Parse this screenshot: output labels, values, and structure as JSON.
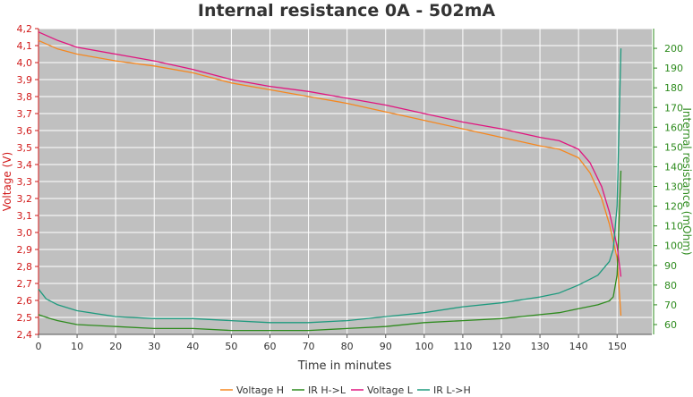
{
  "chart_data": {
    "type": "line",
    "title": "Internal resistance  0A - 502mA",
    "xlabel": "Time in minutes",
    "ylabel_left": "Voltage (V)",
    "ylabel_right": "Internal resistance (mOhm)",
    "xlim": [
      0,
      159
    ],
    "ylim_left": [
      2.4,
      4.2
    ],
    "ylim_right": [
      55,
      210
    ],
    "x_ticks": [
      "0",
      "10",
      "20",
      "30",
      "40",
      "50",
      "60",
      "70",
      "80",
      "90",
      "100",
      "110",
      "120",
      "130",
      "140",
      "150"
    ],
    "y_left_ticks": [
      "2,4",
      "2,5",
      "2,6",
      "2,7",
      "2,8",
      "2,9",
      "3,0",
      "3,1",
      "3,2",
      "3,3",
      "3,4",
      "3,5",
      "3,6",
      "3,7",
      "3,8",
      "3,9",
      "4,0",
      "4,1",
      "4,2"
    ],
    "y_right_ticks": [
      "60",
      "70",
      "80",
      "90",
      "100",
      "110",
      "120",
      "130",
      "140",
      "150",
      "160",
      "170",
      "180",
      "190",
      "200"
    ],
    "grid": true,
    "legend_position": "bottom",
    "colors": {
      "voltage_h": "#f5871f",
      "ir_hl": "#2e8b1e",
      "voltage_l": "#e0157f",
      "ir_lh": "#1e9a7e",
      "left_axis": "#d11a1a",
      "right_axis": "#2e8b1e",
      "plot_bg": "#c0c0c0",
      "grid": "#ffffff"
    },
    "series": [
      {
        "name": "Voltage H",
        "axis": "left",
        "color": "#f5871f",
        "x": [
          0,
          5,
          10,
          20,
          30,
          40,
          50,
          60,
          70,
          80,
          90,
          100,
          110,
          120,
          130,
          135,
          140,
          143,
          146,
          148,
          150,
          151
        ],
        "y": [
          4.13,
          4.08,
          4.05,
          4.01,
          3.98,
          3.94,
          3.88,
          3.84,
          3.8,
          3.76,
          3.71,
          3.66,
          3.61,
          3.56,
          3.51,
          3.49,
          3.44,
          3.35,
          3.2,
          3.05,
          2.85,
          2.51
        ]
      },
      {
        "name": "IR H->L",
        "axis": "right",
        "color": "#2e8b1e",
        "x": [
          0,
          3,
          5,
          10,
          20,
          30,
          40,
          50,
          60,
          70,
          80,
          90,
          100,
          110,
          120,
          130,
          135,
          140,
          145,
          148,
          149,
          150,
          151
        ],
        "y": [
          65,
          63,
          62,
          60,
          59,
          58,
          58,
          57,
          57,
          57,
          58,
          59,
          61,
          62,
          63,
          65,
          66,
          68,
          70,
          72,
          74,
          85,
          138
        ]
      },
      {
        "name": "Voltage L",
        "axis": "left",
        "color": "#e0157f",
        "x": [
          0,
          5,
          10,
          20,
          30,
          40,
          50,
          60,
          70,
          80,
          90,
          100,
          110,
          120,
          130,
          135,
          140,
          143,
          146,
          148,
          150,
          151
        ],
        "y": [
          4.18,
          4.13,
          4.09,
          4.05,
          4.01,
          3.96,
          3.9,
          3.86,
          3.83,
          3.79,
          3.75,
          3.7,
          3.65,
          3.61,
          3.56,
          3.54,
          3.49,
          3.41,
          3.27,
          3.12,
          2.92,
          2.74
        ]
      },
      {
        "name": "IR L->H",
        "axis": "right",
        "color": "#1e9a7e",
        "x": [
          0,
          2,
          5,
          10,
          20,
          30,
          40,
          50,
          60,
          70,
          80,
          90,
          100,
          110,
          120,
          130,
          135,
          140,
          145,
          148,
          149,
          150,
          151
        ],
        "y": [
          78,
          73,
          70,
          67,
          64,
          63,
          63,
          62,
          61,
          61,
          62,
          64,
          66,
          69,
          71,
          74,
          76,
          80,
          85,
          92,
          98,
          120,
          200
        ]
      }
    ]
  }
}
